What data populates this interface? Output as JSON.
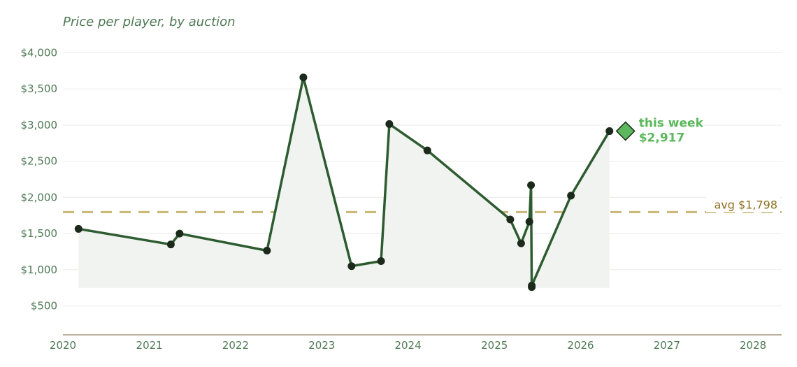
{
  "chart_data": {
    "type": "line",
    "title": "Price per player, by auction",
    "xlabel": "",
    "ylabel": "",
    "xlim": [
      "2020-01-01",
      "2028-05-01"
    ],
    "ylim": [
      100,
      4150
    ],
    "x_ticks": [
      "2020",
      "2021",
      "2022",
      "2023",
      "2024",
      "2025",
      "2026",
      "2027",
      "2028"
    ],
    "y_ticks": [
      500,
      1000,
      1500,
      2000,
      2500,
      3000,
      3500,
      4000
    ],
    "y_tick_labels": [
      "$500",
      "$1,000",
      "$1,500",
      "$2,000",
      "$2,500",
      "$3,000",
      "$3,500",
      "$4,000"
    ],
    "grid": true,
    "series": [
      {
        "x": [
          "2020-03-07",
          "2021-04-02",
          "2021-05-09",
          "2022-05-14",
          "2022-10-15",
          "2023-05-07",
          "2023-09-09",
          "2023-10-14",
          "2024-03-23",
          "2025-03-09",
          "2025-04-24",
          "2025-05-29",
          "2025-06-05",
          "2025-06-08",
          "2025-06-08",
          "2025-11-21",
          "2026-05-03"
        ],
        "y": [
          1565,
          1350,
          1500,
          1265,
          3660,
          1050,
          1120,
          3015,
          2650,
          1695,
          1365,
          1665,
          2170,
          760,
          780,
          2025,
          2917
        ]
      }
    ],
    "average": {
      "value": 1798,
      "label": "avg $1,798"
    },
    "highlight": {
      "label": "this week",
      "value_label": "$2,917",
      "y": 2917
    }
  },
  "colors": {
    "line": "#2e5c31",
    "marker": "#1c2a1c",
    "area": "#f1f3f0",
    "avg_line": "#c9b775",
    "grid": "#e9ece8",
    "axis": "#a69a7c",
    "highlight": "#5cb85c"
  }
}
